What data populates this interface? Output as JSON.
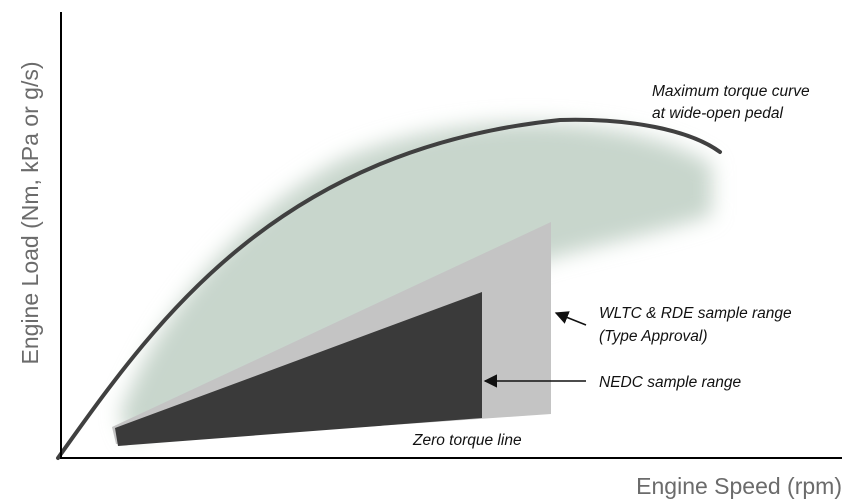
{
  "axes": {
    "x_title": "Engine Speed (rpm)",
    "y_title": "Engine Load (Nm, kPa or g/s)"
  },
  "annotations": {
    "max_torque_line1": "Maximum torque curve",
    "max_torque_line2": "at wide-open pedal",
    "wltc_line1": "WLTC & RDE sample range",
    "wltc_line2": "(Type Approval)",
    "nedc": "NEDC sample range",
    "zero_torque": "Zero torque line"
  },
  "colors": {
    "torque_curve": "#404040",
    "real_world_region": "#c8d6cc",
    "wltc_rde_region": "#c4c4c4",
    "nedc_region": "#3a3a3a",
    "axis_title": "#6b6b6b"
  }
}
